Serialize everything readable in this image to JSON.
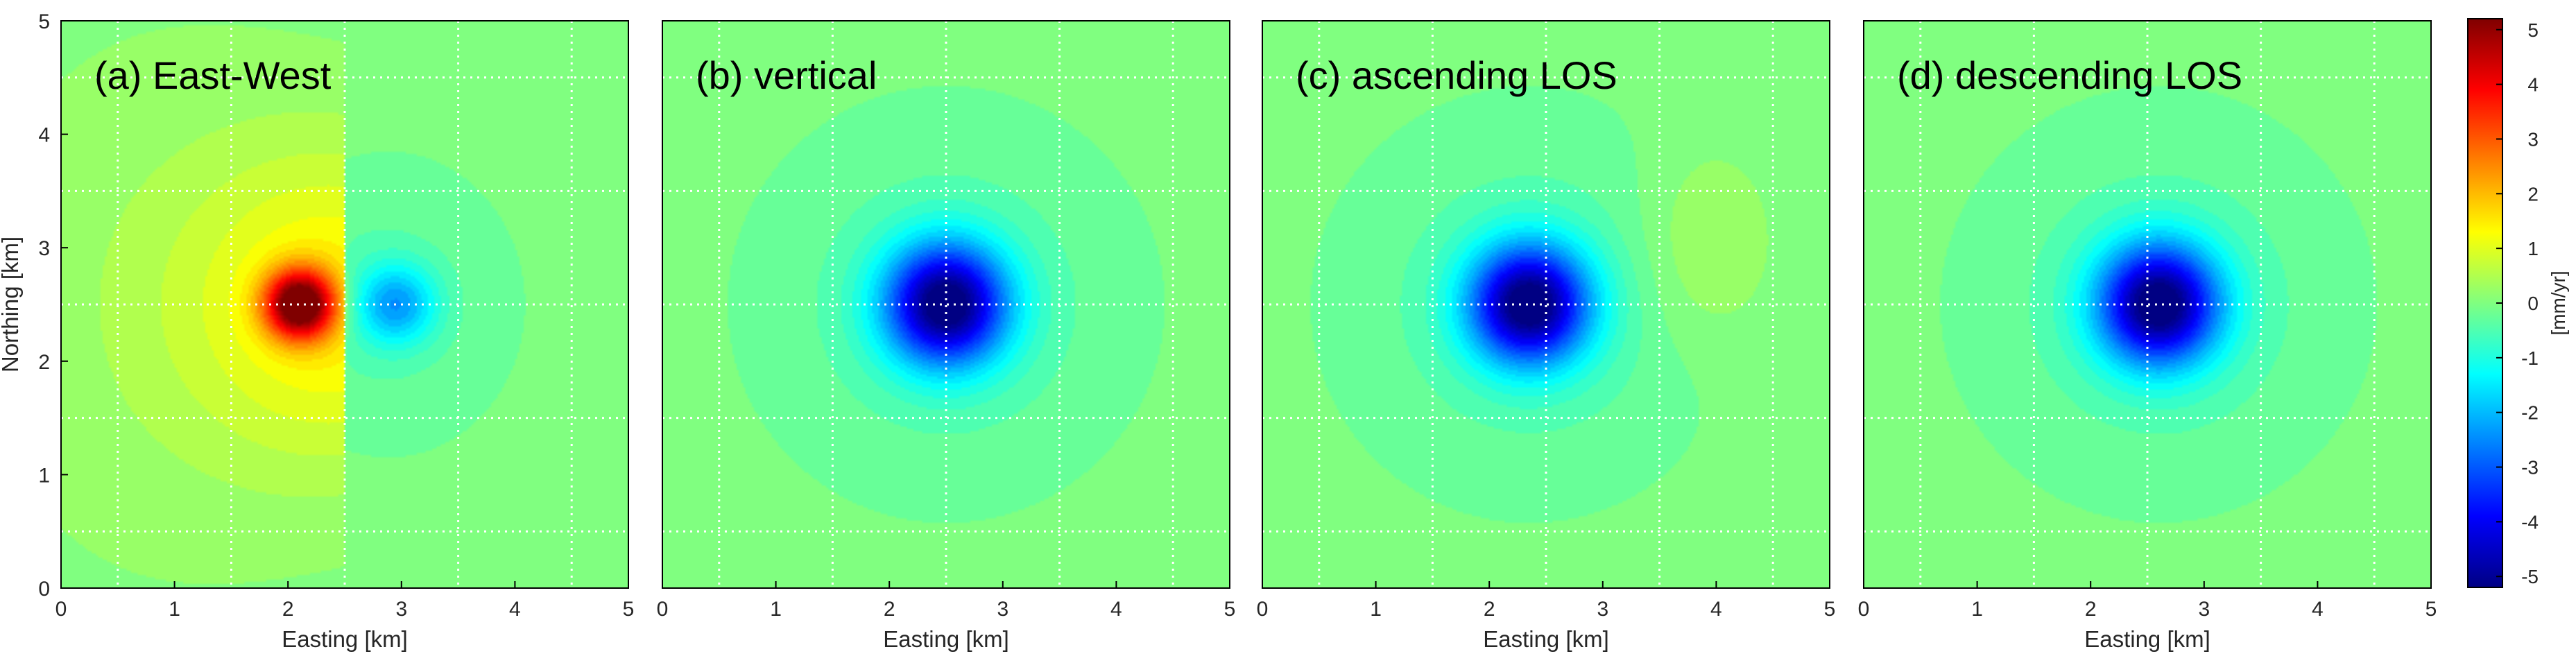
{
  "chart_data": [
    {
      "type": "heatmap",
      "panel": "a",
      "title": "(a) East-West",
      "xlabel": "Easting [km]",
      "ylabel": "Northing [km]",
      "xlim": [
        0,
        5
      ],
      "ylim": [
        0,
        5
      ],
      "xticks": [
        "0",
        "1",
        "2",
        "3",
        "4",
        "5"
      ],
      "yticks": [
        "0",
        "1",
        "2",
        "3",
        "4",
        "5"
      ],
      "grid": true,
      "grid_lines": [
        0.5,
        1.5,
        2.5,
        3.5,
        4.5
      ],
      "field": {
        "model": "east-west dipole",
        "center": [
          2.5,
          2.5
        ],
        "positive_lobe_center": [
          2.1,
          2.5
        ],
        "positive_peak": 5,
        "negative_lobe_center": [
          2.95,
          2.5
        ],
        "negative_peak": -2,
        "background": 0
      }
    },
    {
      "type": "heatmap",
      "panel": "b",
      "title": "(b) vertical",
      "xlabel": "Easting [km]",
      "ylabel": "",
      "xlim": [
        0,
        5
      ],
      "ylim": [
        0,
        5
      ],
      "xticks": [
        "0",
        "1",
        "2",
        "3",
        "4",
        "5"
      ],
      "yticks": [],
      "grid": true,
      "grid_lines": [
        0.5,
        1.5,
        2.5,
        3.5,
        4.5
      ],
      "field": {
        "model": "subsidence bowl",
        "center": [
          2.5,
          2.5
        ],
        "min_value": -5.2,
        "background": 0
      }
    },
    {
      "type": "heatmap",
      "panel": "c",
      "title": "(c) ascending LOS",
      "xlabel": "Easting [km]",
      "ylabel": "",
      "xlim": [
        0,
        5
      ],
      "ylim": [
        0,
        5
      ],
      "xticks": [
        "0",
        "1",
        "2",
        "3",
        "4",
        "5"
      ],
      "yticks": [],
      "grid": true,
      "grid_lines": [
        0.5,
        1.5,
        2.5,
        3.5,
        4.5
      ],
      "field": {
        "model": "subsidence bowl with positive side lobe",
        "center": [
          2.35,
          2.5
        ],
        "min_value": -5.2,
        "side_lobe_center": [
          3.9,
          3.0
        ],
        "side_lobe_value": 0.5,
        "background": 0
      }
    },
    {
      "type": "heatmap",
      "panel": "d",
      "title": "(d) descending LOS",
      "xlabel": "Easting [km]",
      "ylabel": "",
      "xlim": [
        0,
        5
      ],
      "ylim": [
        0,
        5
      ],
      "xticks": [
        "0",
        "1",
        "2",
        "3",
        "4",
        "5"
      ],
      "yticks": [],
      "grid": true,
      "grid_lines": [
        0.5,
        1.5,
        2.5,
        3.5,
        4.5
      ],
      "field": {
        "model": "subsidence bowl",
        "center": [
          2.6,
          2.5
        ],
        "min_value": -5.2,
        "background": 0
      }
    }
  ],
  "colorbar": {
    "label": "[mm/yr]",
    "range": [
      -5.2,
      5.2
    ],
    "ticks": [
      5,
      4,
      3,
      2,
      1,
      0,
      -1,
      -2,
      -3,
      -4,
      -5
    ],
    "tick_labels": [
      "5",
      "4",
      "3",
      "2",
      "1",
      "0",
      "-1",
      "-2",
      "-3",
      "-4",
      "-5"
    ],
    "colormap": "jet"
  },
  "colors": {
    "grid": "#ffffff",
    "axis": "#000000",
    "text": "#000000",
    "tick_text": "#262626"
  }
}
